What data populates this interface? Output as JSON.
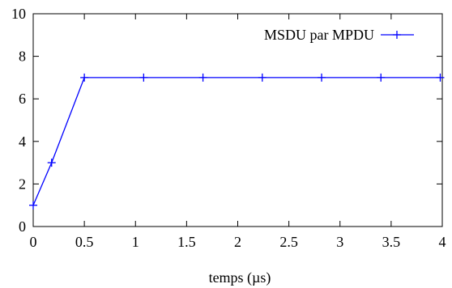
{
  "chart_data": {
    "type": "line",
    "xlabel": "temps (µs)",
    "ylabel": "",
    "xlim": [
      0,
      4
    ],
    "ylim": [
      0,
      10
    ],
    "xticks": [
      "0",
      "0.5",
      "1",
      "1.5",
      "2",
      "2.5",
      "3",
      "3.5",
      "4"
    ],
    "xtick_values": [
      0,
      0.5,
      1,
      1.5,
      2,
      2.5,
      3,
      3.5,
      4
    ],
    "yticks": [
      "0",
      "2",
      "4",
      "6",
      "8",
      "10"
    ],
    "ytick_values": [
      0,
      2,
      4,
      6,
      8,
      10
    ],
    "grid": false,
    "legend_position": "top-right",
    "series": [
      {
        "name": "MSDU par MPDU",
        "color": "#0000ff",
        "marker": "plus",
        "x": [
          0,
          0.18,
          0.5,
          1.08,
          1.66,
          2.24,
          2.82,
          3.4,
          3.98
        ],
        "y": [
          1,
          3,
          7,
          7,
          7,
          7,
          7,
          7,
          7
        ]
      }
    ]
  }
}
